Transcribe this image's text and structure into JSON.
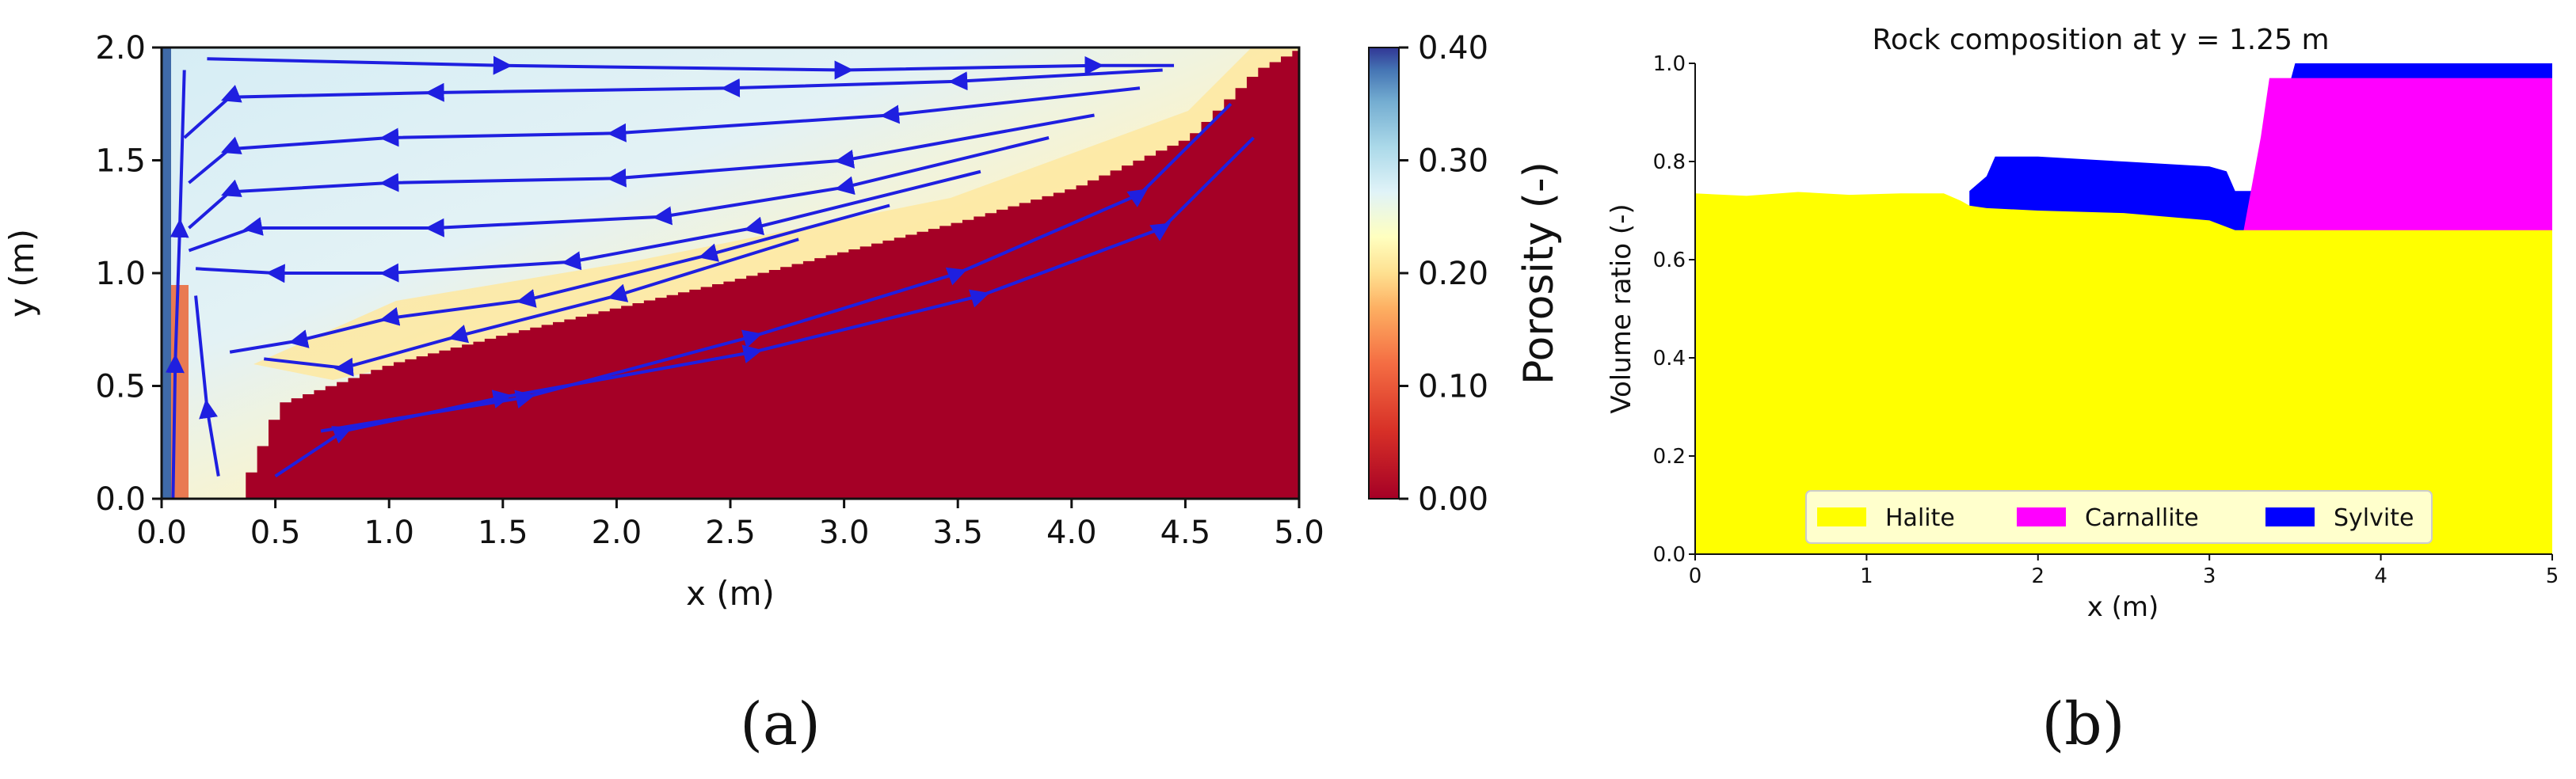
{
  "chart_data": [
    {
      "type": "heatmap",
      "panel_label": "(a)",
      "xlabel": "x (m)",
      "ylabel": "y (m)",
      "xlim": [
        0,
        5
      ],
      "ylim": [
        0,
        2
      ],
      "xticks": [
        "0.0",
        "0.5",
        "1.0",
        "1.5",
        "2.0",
        "2.5",
        "3.0",
        "3.5",
        "4.0",
        "4.5",
        "5.0"
      ],
      "yticks": [
        "0.0",
        "0.5",
        "1.0",
        "1.5",
        "2.0"
      ],
      "colorbar": {
        "label": "Porosity (-)",
        "range": [
          0,
          0.4
        ],
        "ticks": [
          "0.00",
          "0.10",
          "0.20",
          "0.30",
          "0.40"
        ],
        "colormap": "RdYlBu"
      },
      "solid_boundary": [
        [
          0.32,
          0.0
        ],
        [
          0.5,
          0.42
        ],
        [
          1.0,
          0.6
        ],
        [
          1.5,
          0.73
        ],
        [
          2.0,
          0.85
        ],
        [
          2.5,
          0.97
        ],
        [
          3.0,
          1.1
        ],
        [
          3.5,
          1.23
        ],
        [
          4.0,
          1.38
        ],
        [
          4.5,
          1.6
        ],
        [
          4.8,
          1.9
        ],
        [
          5.0,
          2.0
        ]
      ],
      "streamlines_color": "#1f1fe0"
    },
    {
      "type": "area",
      "panel_label": "(b)",
      "title": "Rock composition at y = 1.25 m",
      "xlabel": "x (m)",
      "ylabel": "Volume ratio (-)",
      "xlim": [
        0,
        5
      ],
      "ylim": [
        0,
        1.0
      ],
      "xticks": [
        "0",
        "1",
        "2",
        "3",
        "4",
        "5"
      ],
      "yticks": [
        "0.0",
        "0.2",
        "0.4",
        "0.6",
        "0.8",
        "1.0"
      ],
      "legend_position": "bottom-center",
      "series": [
        {
          "name": "Halite",
          "color": "#ffff00",
          "x": [
            0,
            0.3,
            0.6,
            0.9,
            1.2,
            1.45,
            1.55,
            1.6,
            1.7,
            2.0,
            2.5,
            3.0,
            3.15,
            3.2,
            4.0,
            5.0
          ],
          "y": [
            0.735,
            0.73,
            0.738,
            0.732,
            0.735,
            0.735,
            0.72,
            0.71,
            0.705,
            0.7,
            0.695,
            0.68,
            0.66,
            0.66,
            0.66,
            0.66
          ]
        },
        {
          "name": "Sylvite",
          "color": "#0000ff",
          "x": [
            1.6,
            1.7,
            1.75,
            2.0,
            2.5,
            3.0,
            3.1,
            3.15,
            3.2,
            3.3,
            3.5,
            4.0,
            5.0
          ],
          "y": [
            0.74,
            0.77,
            0.81,
            0.81,
            0.8,
            0.79,
            0.78,
            0.74,
            0.74,
            0.74,
            1.0,
            1.0,
            1.0
          ]
        },
        {
          "name": "Carnallite",
          "color": "#ff00ff",
          "x": [
            3.2,
            3.3,
            3.35,
            4.0,
            5.0
          ],
          "y": [
            0.66,
            0.85,
            0.97,
            0.97,
            0.97
          ]
        }
      ]
    }
  ]
}
